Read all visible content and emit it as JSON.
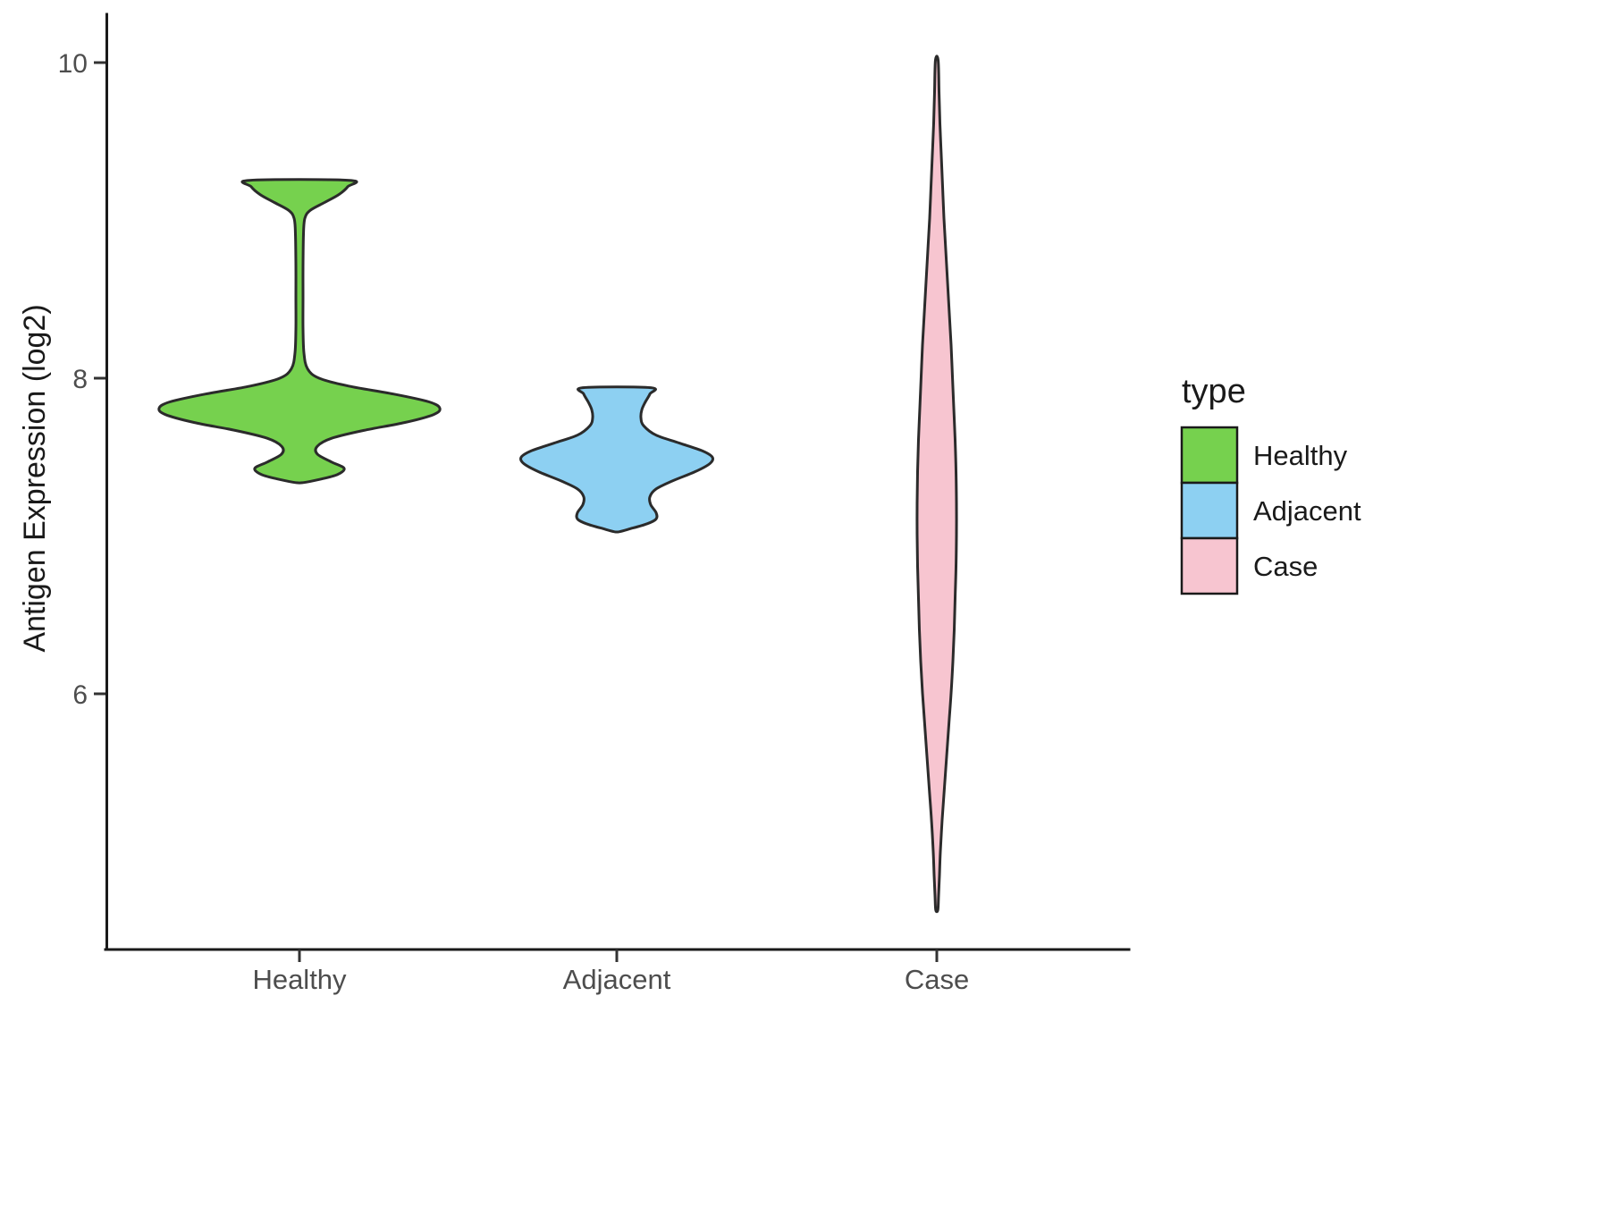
{
  "figure": {
    "background": "#ffffff",
    "outline_color": "#2b2b2b"
  },
  "y_axis": {
    "title": "Antigen Expression (log2)",
    "ticks": [
      {
        "label": "10",
        "value": 10
      },
      {
        "label": "8",
        "value": 8
      },
      {
        "label": "6",
        "value": 6
      }
    ]
  },
  "x_axis": {
    "categories": [
      {
        "label": "Healthy"
      },
      {
        "label": "Adjacent"
      },
      {
        "label": "Case"
      }
    ]
  },
  "legend": {
    "title": "type",
    "items": [
      {
        "label": "Healthy",
        "color": "#76d14e"
      },
      {
        "label": "Adjacent",
        "color": "#8dd0f2"
      },
      {
        "label": "Case",
        "color": "#f7c5d0"
      }
    ]
  },
  "chart_data": {
    "type": "violin",
    "title": "",
    "xlabel": "",
    "ylabel": "Antigen Expression (log2)",
    "ylim": [
      4.38,
      10.21
    ],
    "yticks": [
      6,
      8,
      10
    ],
    "legend_position": "right",
    "grid": false,
    "categories": [
      "Healthy",
      "Adjacent",
      "Case"
    ],
    "series": [
      {
        "name": "Healthy",
        "color": "#76d14e",
        "value_range": [
          7.33,
          9.24
        ],
        "density_modes": [
          7.8,
          7.42,
          9.2
        ],
        "profile": [
          [
            9.24,
            56
          ],
          [
            9.2,
            54
          ],
          [
            9.15,
            44
          ],
          [
            9.1,
            28
          ],
          [
            9.05,
            12
          ],
          [
            9.0,
            6
          ],
          [
            8.9,
            4.5
          ],
          [
            8.7,
            4
          ],
          [
            8.5,
            4
          ],
          [
            8.3,
            4
          ],
          [
            8.15,
            5
          ],
          [
            8.05,
            9
          ],
          [
            7.99,
            22
          ],
          [
            7.94,
            55
          ],
          [
            7.89,
            105
          ],
          [
            7.84,
            145
          ],
          [
            7.8,
            157
          ],
          [
            7.76,
            150
          ],
          [
            7.71,
            118
          ],
          [
            7.66,
            72
          ],
          [
            7.61,
            36
          ],
          [
            7.56,
            20
          ],
          [
            7.51,
            20
          ],
          [
            7.46,
            36
          ],
          [
            7.42,
            50
          ],
          [
            7.38,
            42
          ],
          [
            7.35,
            22
          ],
          [
            7.33,
            4
          ]
        ]
      },
      {
        "name": "Adjacent",
        "color": "#8dd0f2",
        "value_range": [
          7.02,
          7.93
        ],
        "density_modes": [
          7.5,
          7.12
        ],
        "profile": [
          [
            7.93,
            38
          ],
          [
            7.89,
            37
          ],
          [
            7.84,
            32
          ],
          [
            7.79,
            28
          ],
          [
            7.74,
            27
          ],
          [
            7.69,
            30
          ],
          [
            7.63,
            44
          ],
          [
            7.58,
            70
          ],
          [
            7.53,
            96
          ],
          [
            7.49,
            107
          ],
          [
            7.45,
            104
          ],
          [
            7.4,
            88
          ],
          [
            7.34,
            62
          ],
          [
            7.29,
            44
          ],
          [
            7.24,
            37
          ],
          [
            7.19,
            38
          ],
          [
            7.14,
            44
          ],
          [
            7.1,
            44
          ],
          [
            7.07,
            34
          ],
          [
            7.04,
            16
          ],
          [
            7.02,
            3
          ]
        ]
      },
      {
        "name": "Case",
        "color": "#f7c5d0",
        "value_range": [
          4.63,
          10.0
        ],
        "density_modes": [
          7.0
        ],
        "profile": [
          [
            10.0,
            1.5
          ],
          [
            9.8,
            2.5
          ],
          [
            9.6,
            3.5
          ],
          [
            9.4,
            5
          ],
          [
            9.2,
            6.5
          ],
          [
            9.0,
            8
          ],
          [
            8.8,
            10
          ],
          [
            8.6,
            12
          ],
          [
            8.4,
            14
          ],
          [
            8.2,
            16
          ],
          [
            8.0,
            17.5
          ],
          [
            7.8,
            19
          ],
          [
            7.6,
            20.5
          ],
          [
            7.4,
            21.5
          ],
          [
            7.2,
            22
          ],
          [
            7.0,
            22
          ],
          [
            6.8,
            21.5
          ],
          [
            6.6,
            20.5
          ],
          [
            6.4,
            19.5
          ],
          [
            6.2,
            18
          ],
          [
            6.0,
            16
          ],
          [
            5.8,
            13.5
          ],
          [
            5.6,
            11
          ],
          [
            5.4,
            8.5
          ],
          [
            5.2,
            6
          ],
          [
            5.0,
            4
          ],
          [
            4.85,
            3
          ],
          [
            4.72,
            2
          ],
          [
            4.63,
            1.2
          ]
        ]
      }
    ]
  }
}
